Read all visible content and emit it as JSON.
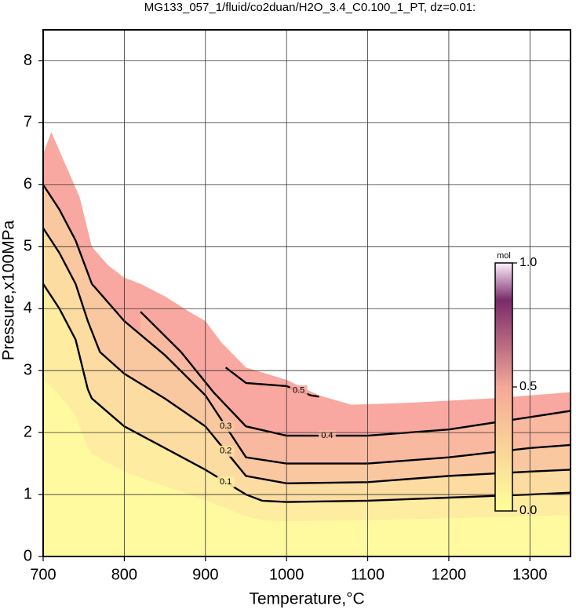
{
  "chart_data": {
    "type": "contour",
    "title": "MG133_057_1/fluid/co2duan/H2O_3.4_C0.100_1_PT, dz=0.01:",
    "xlabel": "Temperature,°C",
    "ylabel": "Pressure,x100MPa",
    "xlim": [
      700,
      1350
    ],
    "ylim": [
      0,
      8.5
    ],
    "xticks": [
      700,
      800,
      900,
      1000,
      1100,
      1200,
      1300
    ],
    "yticks": [
      0,
      1,
      2,
      3,
      4,
      5,
      6,
      7,
      8
    ],
    "grid": true,
    "field_color": "#f8a8a0",
    "field_boundary": {
      "x": [
        700,
        710,
        725,
        745,
        760,
        780,
        800,
        820,
        850,
        880,
        900,
        920,
        950,
        1000,
        1040,
        1080,
        1150,
        1250,
        1350
      ],
      "y": [
        6.5,
        6.85,
        6.4,
        5.8,
        5.0,
        4.7,
        4.5,
        4.4,
        4.2,
        3.95,
        3.8,
        3.45,
        3.05,
        2.85,
        2.6,
        2.45,
        2.48,
        2.55,
        2.65
      ]
    },
    "contours": [
      {
        "level": 0.4,
        "color": "#f9b8a0",
        "x": [
          820,
          870,
          910,
          950,
          1000,
          1100,
          1200,
          1300,
          1350
        ],
        "y": [
          3.95,
          3.3,
          2.65,
          2.1,
          1.95,
          1.95,
          2.05,
          2.25,
          2.35
        ]
      },
      {
        "level": 0.3,
        "color": "#fac8a0",
        "x": [
          700,
          720,
          740,
          760,
          800,
          850,
          900,
          950,
          1000,
          1100,
          1200,
          1300,
          1350
        ],
        "y": [
          6.0,
          5.6,
          5.1,
          4.4,
          3.8,
          3.25,
          2.6,
          1.6,
          1.5,
          1.5,
          1.6,
          1.75,
          1.8
        ]
      },
      {
        "level": 0.2,
        "color": "#fcdca0",
        "x": [
          700,
          720,
          740,
          755,
          770,
          800,
          850,
          900,
          950,
          1000,
          1100,
          1200,
          1300,
          1350
        ],
        "y": [
          5.3,
          4.9,
          4.4,
          3.8,
          3.3,
          2.95,
          2.55,
          2.1,
          1.3,
          1.18,
          1.2,
          1.3,
          1.37,
          1.4
        ]
      },
      {
        "level": 0.1,
        "color": "#feeca0",
        "x": [
          700,
          720,
          740,
          755,
          760,
          800,
          850,
          900,
          950,
          970,
          1000,
          1100,
          1200,
          1300,
          1350
        ],
        "y": [
          4.4,
          4.0,
          3.5,
          2.7,
          2.55,
          2.1,
          1.75,
          1.4,
          1.0,
          0.9,
          0.88,
          0.9,
          0.95,
          1.0,
          1.03
        ]
      },
      {
        "level": 0.5,
        "color": "#f8a8a0",
        "x": [
          925,
          950,
          1000,
          1030,
          1040
        ],
        "y": [
          3.05,
          2.8,
          2.75,
          2.6,
          2.58
        ]
      }
    ],
    "low_color": "#fffaa0",
    "colorbar": {
      "label": "mol",
      "clim": [
        0,
        1
      ],
      "colors": [
        "#ffff99",
        "#f5a898",
        "#7a2a6a",
        "#fff0ff"
      ],
      "ticks": [
        {
          "value": 0,
          "label": "0.0"
        },
        {
          "value": 0.5,
          "label": "0.5"
        },
        {
          "value": 1,
          "label": "1.0"
        }
      ]
    }
  }
}
